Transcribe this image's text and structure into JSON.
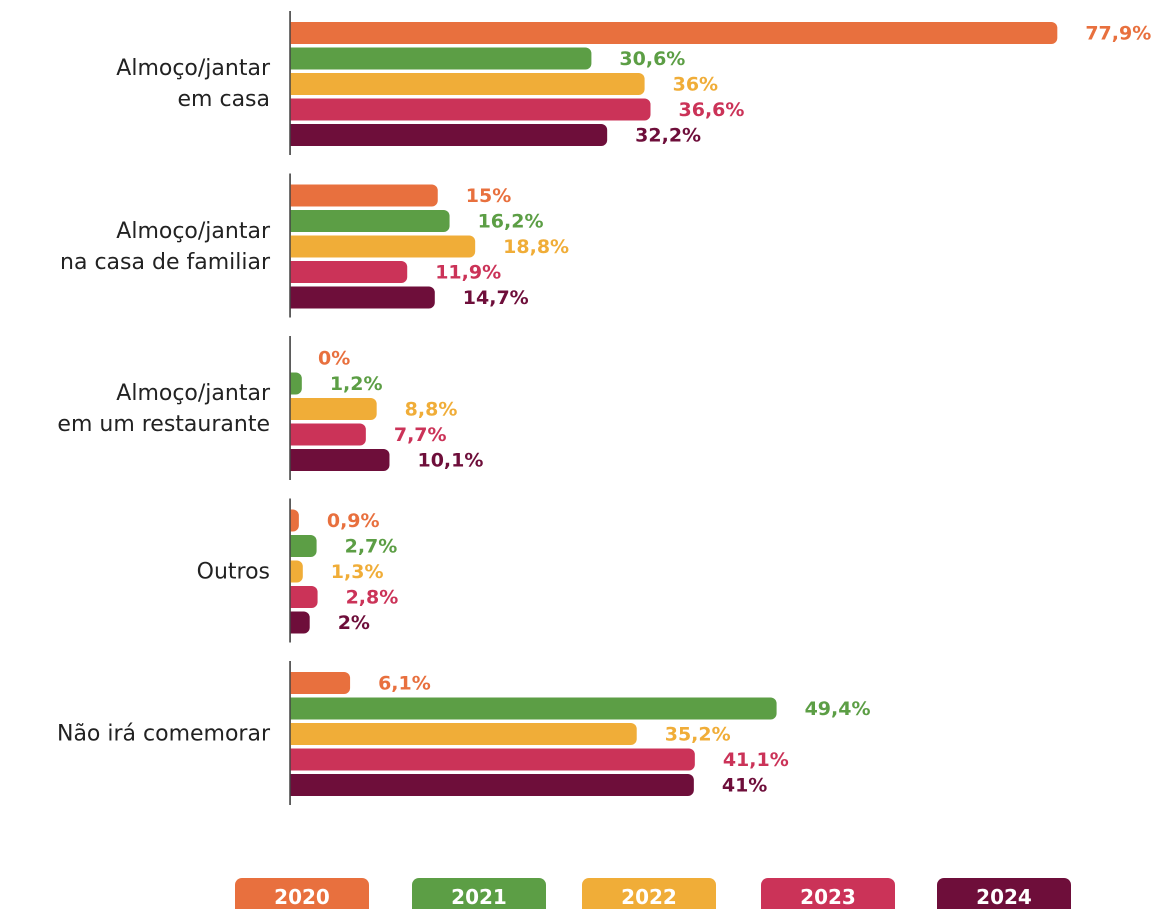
{
  "chart_data": {
    "type": "bar",
    "orientation": "horizontal",
    "categories": [
      "Almoço/jantar\nem casa",
      "Almoço/jantar\nna casa de familiar",
      "Almoço/jantar\nem um restaurante",
      "Outros",
      "Não irá comemorar"
    ],
    "series": [
      {
        "name": "2020",
        "color": "#e8703e",
        "values": [
          77.9,
          15,
          0,
          0.9,
          6.1
        ],
        "value_labels": [
          "77,9%",
          "15%",
          "0%",
          "0,9%",
          "6,1%"
        ]
      },
      {
        "name": "2021",
        "color": "#5c9e45",
        "values": [
          30.6,
          16.2,
          1.2,
          2.7,
          49.4
        ],
        "value_labels": [
          "30,6%",
          "16,2%",
          "1,2%",
          "2,7%",
          "49,4%"
        ]
      },
      {
        "name": "2022",
        "color": "#f0ad38",
        "values": [
          36,
          18.8,
          8.8,
          1.3,
          35.2
        ],
        "value_labels": [
          "36%",
          "18,8%",
          "8,8%",
          "1,3%",
          "35,2%"
        ]
      },
      {
        "name": "2023",
        "color": "#cb3358",
        "values": [
          36.6,
          11.9,
          7.7,
          2.8,
          41.1
        ],
        "value_labels": [
          "36,6%",
          "11,9%",
          "7,7%",
          "2,8%",
          "41,1%"
        ]
      },
      {
        "name": "2024",
        "color": "#6e0e3a",
        "values": [
          32.2,
          14.7,
          10.1,
          2,
          41
        ],
        "value_labels": [
          "32,2%",
          "14,7%",
          "10,1%",
          "2%",
          "41%"
        ]
      }
    ]
  }
}
